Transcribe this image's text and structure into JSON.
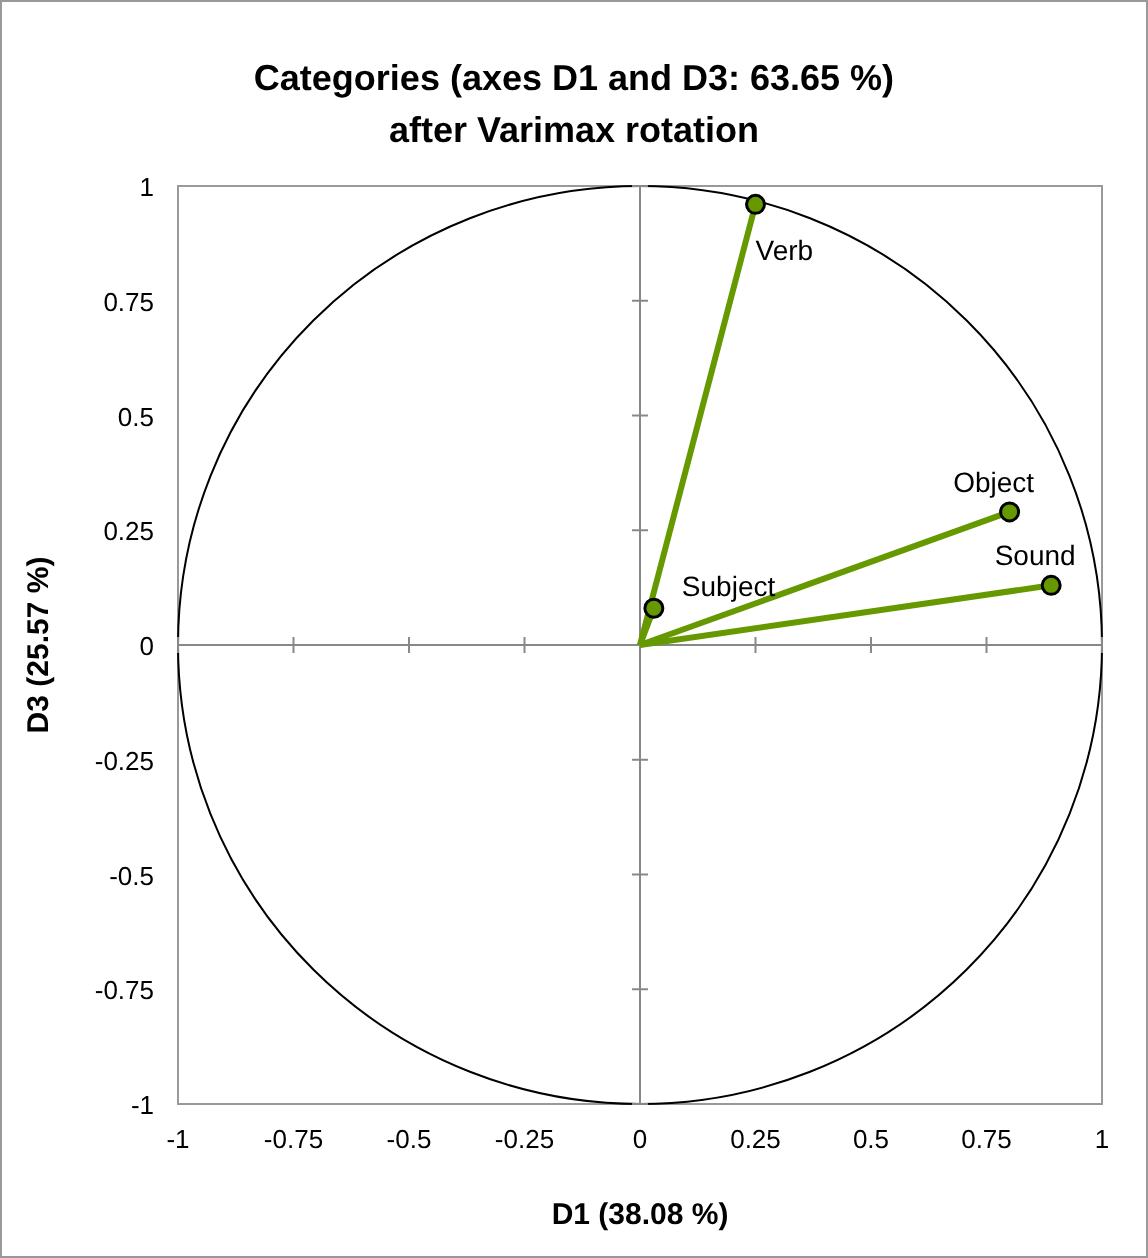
{
  "chart_data": {
    "type": "scatter",
    "title": "Categories (axes D1 and D3: 63.65 %)",
    "subtitle": "after Varimax rotation",
    "xlabel": "D1 (38.08 %)",
    "ylabel": "D3 (25.57 %)",
    "xlim": [
      -1,
      1
    ],
    "ylim": [
      -1,
      1
    ],
    "xticks": [
      -1,
      -0.75,
      -0.5,
      -0.25,
      0,
      0.25,
      0.5,
      0.75,
      1
    ],
    "yticks": [
      -1,
      -0.75,
      -0.5,
      -0.25,
      0,
      0.25,
      0.5,
      0.75,
      1
    ],
    "series": [
      {
        "type": "line",
        "color": "#669900",
        "x": [
          0,
          0.25
        ],
        "values": [
          0,
          0.96
        ]
      },
      {
        "type": "line",
        "color": "#669900",
        "x": [
          0,
          0.8
        ],
        "values": [
          0,
          0.29
        ]
      },
      {
        "type": "line",
        "color": "#669900",
        "x": [
          0,
          0.89
        ],
        "values": [
          0,
          0.13
        ]
      },
      {
        "type": "line",
        "color": "#669900",
        "x": [
          0,
          0.03
        ],
        "values": [
          0,
          0.08
        ]
      },
      {
        "type": "scatter",
        "marker": "circle",
        "color": "#669900",
        "x": [
          0.25,
          0.8,
          0.89,
          0.03
        ],
        "values": [
          0.96,
          0.29,
          0.13,
          0.08
        ]
      }
    ],
    "annotations": [
      {
        "text": "Verb",
        "x": 0.25,
        "y": 0.96
      },
      {
        "text": "Object",
        "x": 0.8,
        "y": 0.29
      },
      {
        "text": "Sound",
        "x": 0.89,
        "y": 0.13
      },
      {
        "text": "Subject",
        "x": 0.03,
        "y": 0.08
      }
    ]
  }
}
